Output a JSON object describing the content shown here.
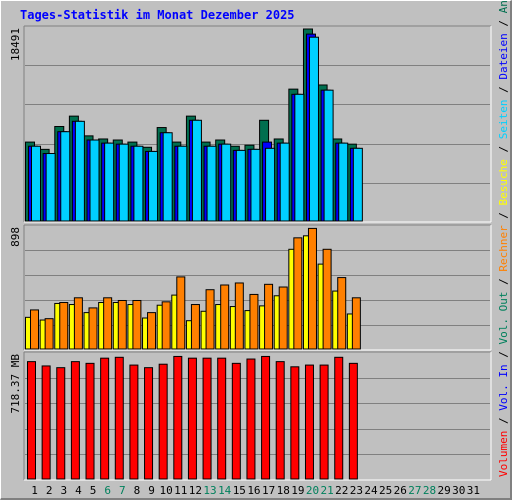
{
  "title": "Tages-Statistik im Monat Dezember 2025",
  "colors": {
    "background": "#c0c0c0",
    "grid": "#808080",
    "hits": "#006f4f",
    "files": "#0000ff",
    "pages": "#00d0ff",
    "visits": "#ffff00",
    "sites": "#ff8000",
    "kbytes": "#ff0000",
    "weekend_day": "#00805c",
    "weekday": "#000000"
  },
  "chart_data": [
    {
      "type": "bar",
      "title": "Tages-Statistik im Monat Dezember 2025",
      "ylabel_max": "18491",
      "ylim": [
        0,
        18491
      ],
      "grid": true,
      "legend": [
        "Anfragen",
        "Dateien",
        "Seiten"
      ],
      "legend_placement": "right",
      "categories": [
        "1",
        "2",
        "3",
        "4",
        "5",
        "6",
        "7",
        "8",
        "9",
        "10",
        "11",
        "12",
        "13",
        "14",
        "15",
        "16",
        "17",
        "18",
        "19",
        "20",
        "21",
        "22",
        "23",
        "24",
        "25",
        "26",
        "27",
        "28",
        "29",
        "30",
        "31"
      ],
      "series": [
        {
          "name": "Anfragen",
          "values": [
            7600,
            6900,
            9100,
            10100,
            8200,
            7900,
            7800,
            7600,
            7100,
            9000,
            7600,
            10100,
            7600,
            7800,
            7200,
            7300,
            9700,
            7900,
            12700,
            18491,
            13100,
            7900,
            7400,
            null,
            null,
            null,
            null,
            null,
            null,
            null,
            null
          ]
        },
        {
          "name": "Dateien",
          "values": [
            7200,
            6500,
            8600,
            9600,
            7800,
            7500,
            7400,
            7200,
            6700,
            8500,
            7200,
            9700,
            7200,
            7400,
            6800,
            6900,
            7600,
            7500,
            12200,
            18000,
            12600,
            7500,
            7000,
            null,
            null,
            null,
            null,
            null,
            null,
            null,
            null
          ]
        },
        {
          "name": "Seiten",
          "values": [
            7200,
            6500,
            8600,
            9600,
            7800,
            7500,
            7400,
            7200,
            6700,
            8500,
            7200,
            9700,
            7200,
            7400,
            6800,
            6900,
            7000,
            7500,
            12200,
            17700,
            12600,
            7500,
            7000,
            null,
            null,
            null,
            null,
            null,
            null,
            null,
            null
          ]
        }
      ]
    },
    {
      "type": "bar",
      "ylabel_max": "898",
      "ylim": [
        0,
        898
      ],
      "grid": true,
      "legend": [
        "Besuche",
        "Rechner"
      ],
      "legend_placement": "right",
      "categories": [
        "1",
        "2",
        "3",
        "4",
        "5",
        "6",
        "7",
        "8",
        "9",
        "10",
        "11",
        "12",
        "13",
        "14",
        "15",
        "16",
        "17",
        "18",
        "19",
        "20",
        "21",
        "22",
        "23",
        "24",
        "25",
        "26",
        "27",
        "28",
        "29",
        "30",
        "31"
      ],
      "series": [
        {
          "name": "Besuche",
          "values": [
            235,
            215,
            338,
            330,
            270,
            345,
            345,
            330,
            230,
            325,
            400,
            210,
            280,
            330,
            315,
            285,
            320,
            395,
            740,
            840,
            630,
            430,
            260,
            null,
            null,
            null,
            null,
            null,
            null,
            null,
            null
          ]
        },
        {
          "name": "Rechner",
          "values": [
            290,
            225,
            345,
            380,
            305,
            380,
            360,
            360,
            270,
            350,
            535,
            330,
            440,
            475,
            490,
            405,
            480,
            460,
            825,
            895,
            740,
            530,
            380,
            null,
            null,
            null,
            null,
            null,
            null,
            null,
            null
          ]
        }
      ]
    },
    {
      "type": "bar",
      "ylabel_max": "718.37 MB",
      "ylim": [
        0,
        718.37
      ],
      "grid": true,
      "legend": [
        "Volumen",
        "Vol. In",
        "Vol. Out"
      ],
      "legend_placement": "right",
      "categories": [
        "1",
        "2",
        "3",
        "4",
        "5",
        "6",
        "7",
        "8",
        "9",
        "10",
        "11",
        "12",
        "13",
        "14",
        "15",
        "16",
        "17",
        "18",
        "19",
        "20",
        "21",
        "22",
        "23",
        "24",
        "25",
        "26",
        "27",
        "28",
        "29",
        "30",
        "31"
      ],
      "series": [
        {
          "name": "Volumen",
          "values": [
            680,
            655,
            645,
            680,
            670,
            700,
            705,
            660,
            645,
            665,
            710,
            700,
            700,
            700,
            670,
            695,
            710,
            680,
            650,
            660,
            660,
            705,
            670,
            null,
            null,
            null,
            null,
            null,
            null,
            null,
            null
          ]
        }
      ]
    }
  ],
  "legend_right": [
    {
      "label": "Volumen",
      "color": "#ff0000"
    },
    {
      "label": "Vol. In",
      "color": "#0000ff"
    },
    {
      "label": "Vol. Out",
      "color": "#00805c"
    },
    {
      "label": "Rechner",
      "color": "#ff8000"
    },
    {
      "label": "Besuche",
      "color": "#ffff00"
    },
    {
      "label": "Seiten",
      "color": "#00d0ff"
    },
    {
      "label": "Dateien",
      "color": "#0000ff"
    },
    {
      "label": "Anfragen",
      "color": "#006f4f"
    }
  ],
  "legend_separator": "/",
  "weekend_days": [
    "6",
    "7",
    "13",
    "14",
    "20",
    "21",
    "27",
    "28"
  ]
}
